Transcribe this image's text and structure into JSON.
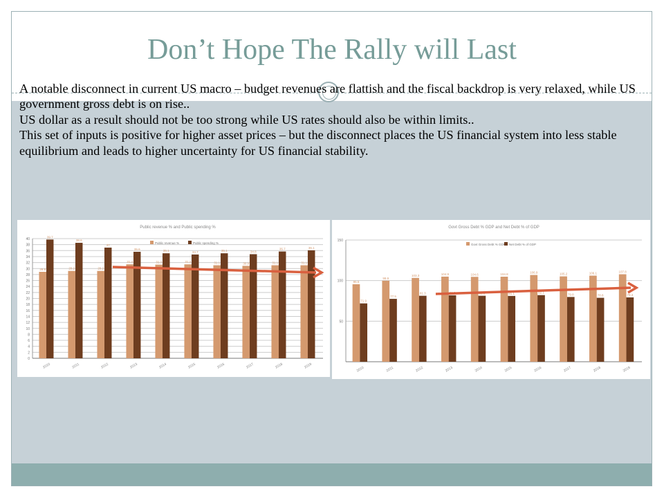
{
  "title": "Don’t Hope The Rally will Last",
  "paragraphs": [
    "A notable disconnect in current US macro – budget revenues are flattish and the fiscal backdrop is very relaxed, while US government gross debt is on rise..",
    "US dollar as a result should not be too strong while US rates should  also be within limits..",
    "This set of inputs is positive for higher asset prices –  but the disconnect places the US financial system into less stable equilibrium and leads to higher uncertainty for US financial stability."
  ],
  "colors": {
    "light": "#d4996e",
    "dark": "#6e3d1f",
    "arrow": "#d9603f"
  },
  "chart_data": [
    {
      "type": "bar",
      "title": "Public revenue % and Public spending %",
      "categories": [
        "2010",
        "2011",
        "2012",
        "2013",
        "2014",
        "2015",
        "2016",
        "2017",
        "2018",
        "2019"
      ],
      "series": [
        {
          "name": "Public revenue %",
          "values": [
            28.9,
            29.2,
            29.2,
            31.4,
            31.3,
            31.4,
            31.1,
            30.9,
            31.1,
            31.1
          ]
        },
        {
          "name": "Public spending %",
          "values": [
            39.7,
            38.6,
            37.0,
            35.6,
            35.1,
            34.7,
            35.1,
            34.8,
            35.7,
            36.1
          ]
        }
      ],
      "ylim": [
        0,
        40
      ],
      "yticks": [
        0,
        2,
        4,
        6,
        8,
        10,
        12,
        14,
        16,
        18,
        20,
        22,
        24,
        26,
        28,
        30,
        32,
        34,
        36,
        38,
        40
      ],
      "legend": "top-center",
      "annotation": "trend arrow (flat/declining)"
    },
    {
      "type": "bar",
      "title": "Govt Gross Debt % GDP and Net Debt % of GDP",
      "categories": [
        "2010",
        "2011",
        "2012",
        "2013",
        "2014",
        "2015",
        "2016",
        "2017",
        "2018",
        "2019"
      ],
      "series": [
        {
          "name": "Govt Gross Debt % GDP",
          "values": [
            95.5,
            99.9,
            103.3,
            104.9,
            104.6,
            104.8,
            106.9,
            105.2,
            106.1,
            107.8
          ]
        },
        {
          "name": "Net Debt % of GDP",
          "values": [
            71.9,
            77.5,
            81.3,
            81.9,
            81.3,
            81.1,
            82.1,
            79.8,
            78.8,
            79.3
          ]
        }
      ],
      "ylim": [
        0,
        150
      ],
      "yticks": [
        50,
        100,
        150
      ],
      "legend": "top-center",
      "annotation": "trend arrow (rising)"
    }
  ]
}
